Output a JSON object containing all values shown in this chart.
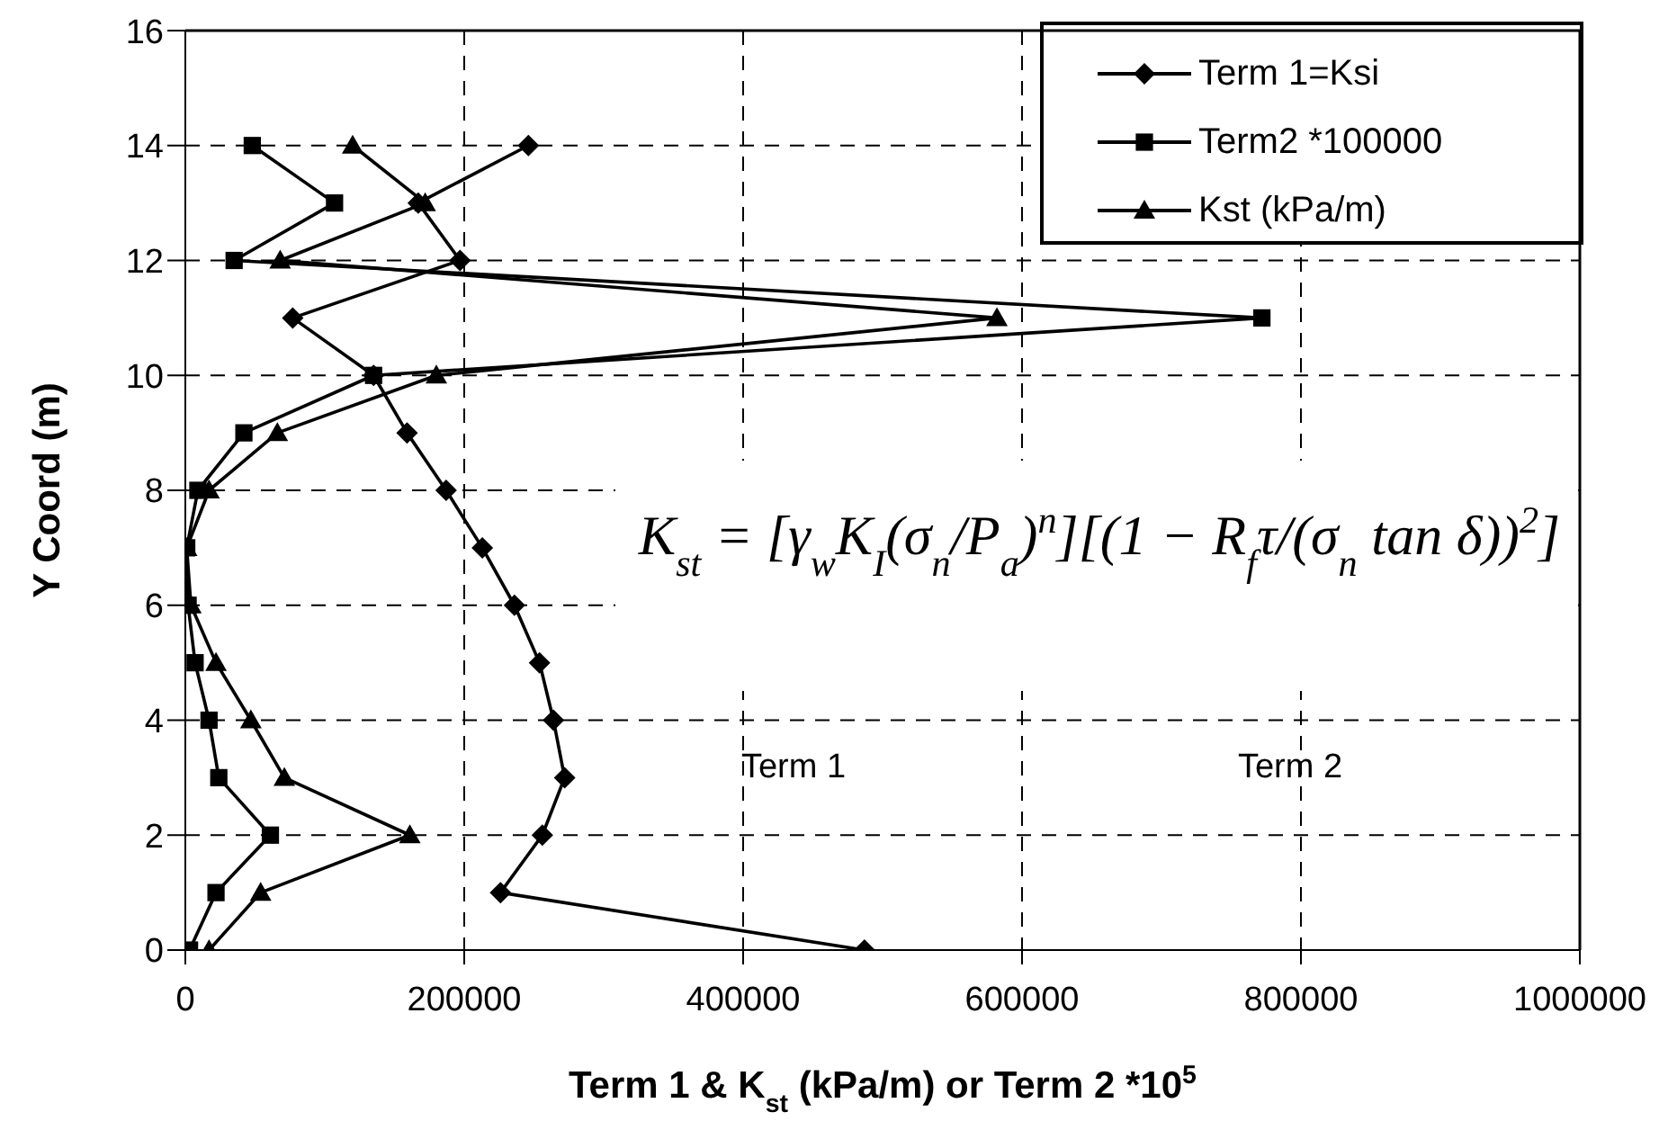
{
  "chart_data": {
    "type": "line",
    "xlabel": "Term 1 & K$_{st}$ (kPa/m) or Term 2 *10$^{5}$",
    "ylabel": "Y Coord (m)",
    "xlim": [
      0,
      1000000
    ],
    "xticks": [
      0,
      200000,
      400000,
      600000,
      800000,
      1000000
    ],
    "ylim": [
      0,
      16
    ],
    "yticks": [
      0,
      2,
      4,
      6,
      8,
      10,
      12,
      14,
      16
    ],
    "grid": true,
    "legend": "top right",
    "line_style": "solid",
    "annotations": [
      "K$_{st}$ = [γ$_{w}$K$_{I}$(σ$_{n}$/P$_{a}$)$^{n}$][(1 − R$_{f}$τ/(σ$_{n}$ tan δ))$^{2}$]",
      "Term 1",
      "Term 2"
    ],
    "series": [
      {
        "name": "Term 1=Ksi",
        "color": "#000000",
        "marker": "diamond",
        "x": [
          487000,
          226000,
          256000,
          272000,
          264000,
          254000,
          236000,
          213000,
          187000,
          159000,
          135000,
          77000,
          197000,
          167000,
          246000
        ],
        "values": [
          0,
          1,
          2,
          3,
          4,
          5,
          6,
          7,
          8,
          9,
          10,
          11,
          12,
          13,
          14
        ]
      },
      {
        "name": "Term2 *100000",
        "color": "#000000",
        "marker": "square",
        "x": [
          3000,
          22000,
          61000,
          24000,
          17000,
          7000,
          2000,
          1000,
          9000,
          42000,
          135000,
          772000,
          35000,
          107000,
          48000
        ],
        "values": [
          0,
          1,
          2,
          3,
          4,
          5,
          6,
          7,
          8,
          9,
          10,
          11,
          12,
          13,
          14
        ]
      },
      {
        "name": "Kst (kPa/m)",
        "color": "#000000",
        "marker": "triangle",
        "x": [
          17000,
          54000,
          161000,
          71000,
          47000,
          22000,
          4000,
          1000,
          17000,
          66000,
          180000,
          582000,
          68000,
          172000,
          120000
        ],
        "values": [
          0,
          1,
          2,
          3,
          4,
          5,
          6,
          7,
          8,
          9,
          10,
          11,
          12,
          13,
          14
        ]
      }
    ]
  }
}
